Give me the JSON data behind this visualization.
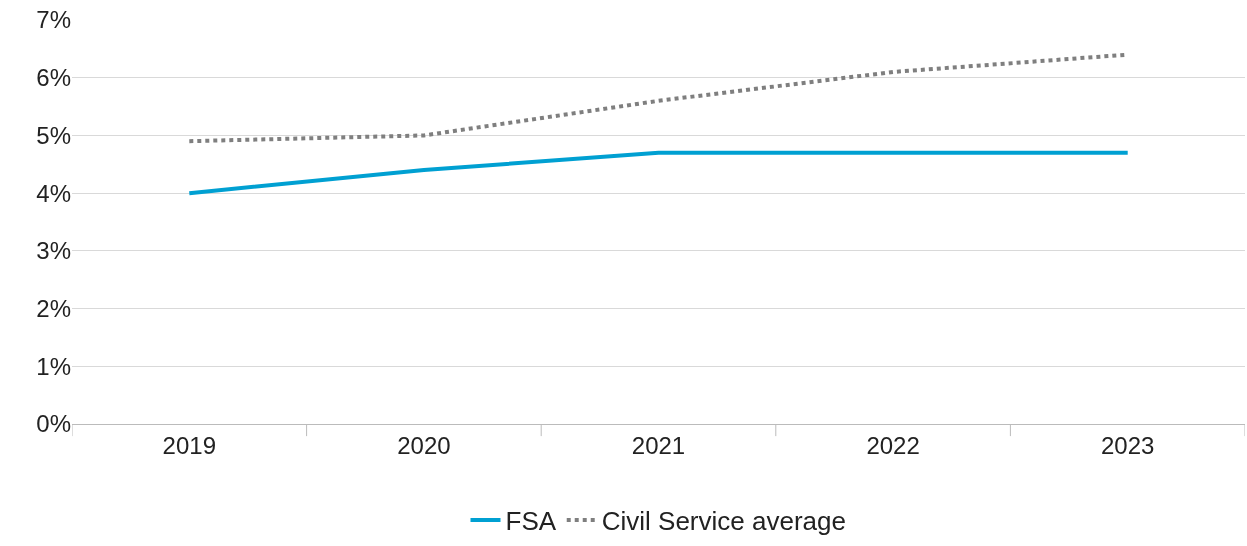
{
  "chart_data": {
    "type": "line",
    "categories": [
      "2019",
      "2020",
      "2021",
      "2022",
      "2023"
    ],
    "series": [
      {
        "name": "FSA",
        "color": "#00a0d2",
        "values": [
          4.0,
          4.4,
          4.7,
          4.7,
          4.7
        ],
        "line_style": "solid"
      },
      {
        "name": "Civil Service average",
        "color": "#7f7f7f",
        "values": [
          4.9,
          5.0,
          5.6,
          6.1,
          6.4
        ],
        "line_style": "dotted"
      }
    ],
    "ylim": [
      0,
      7
    ],
    "yticks": [
      {
        "value": 0,
        "label": "0%"
      },
      {
        "value": 1,
        "label": "1%"
      },
      {
        "value": 2,
        "label": "2%"
      },
      {
        "value": 3,
        "label": "3%"
      },
      {
        "value": 4,
        "label": "4%"
      },
      {
        "value": 5,
        "label": "5%"
      },
      {
        "value": 6,
        "label": "6%"
      },
      {
        "value": 7,
        "label": "7%"
      }
    ],
    "grid": "y",
    "legend": "bottom",
    "marker": "none"
  }
}
